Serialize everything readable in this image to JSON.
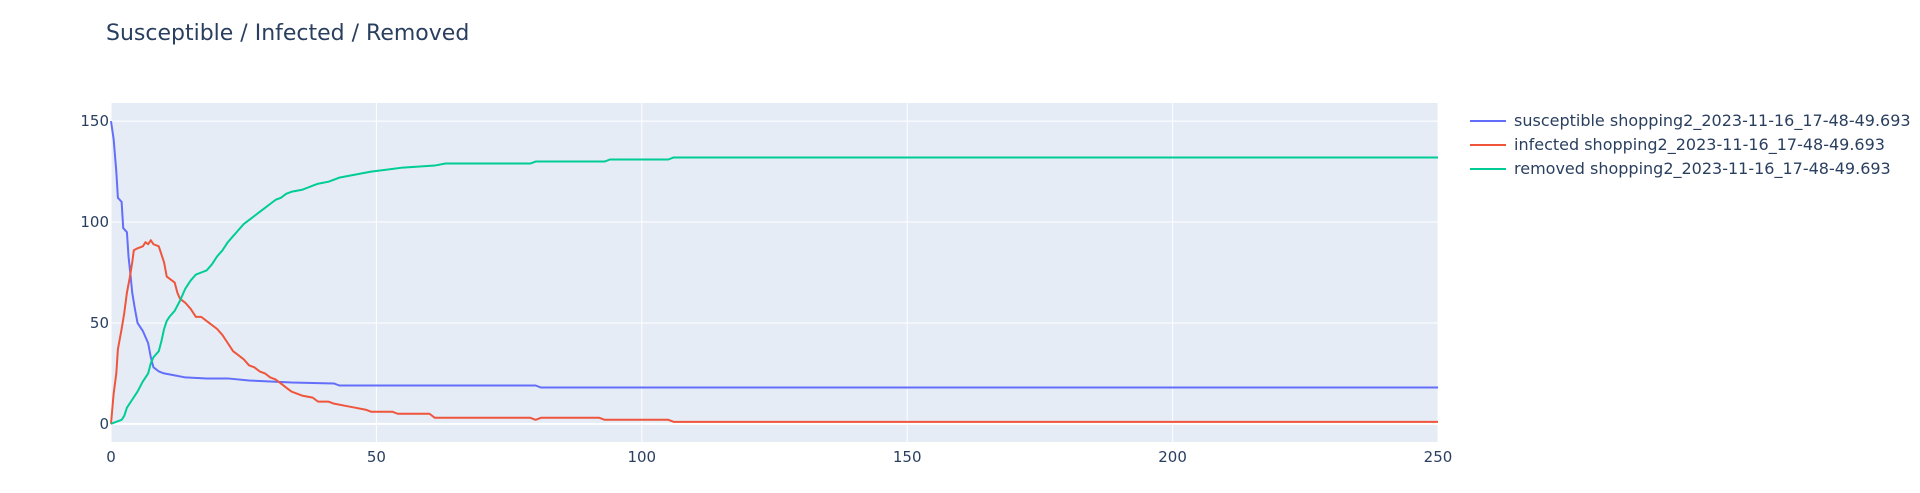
{
  "chart_data": {
    "type": "line",
    "title": "Susceptible / Infected / Removed",
    "xlabel": "",
    "ylabel": "",
    "xlim": [
      0,
      250
    ],
    "ylim": [
      -9,
      159
    ],
    "x_ticks": [
      0,
      50,
      100,
      150,
      200,
      250
    ],
    "y_ticks": [
      0,
      50,
      100,
      150
    ],
    "x_tick_labels": [
      "0",
      "50",
      "100",
      "150",
      "200",
      "250"
    ],
    "y_tick_labels": [
      "0",
      "50",
      "100",
      "150"
    ],
    "grid": true,
    "legend_position": "right",
    "plot_background": "#e5ecf6",
    "grid_color": "#ffffff",
    "series": [
      {
        "name": "susceptible shopping2_2023-11-16_17-48-49.693",
        "color": "#636efa",
        "points": [
          [
            0,
            150
          ],
          [
            0.5,
            141
          ],
          [
            1,
            125
          ],
          [
            1.3,
            112
          ],
          [
            2,
            110
          ],
          [
            2.3,
            97
          ],
          [
            3,
            95
          ],
          [
            3.3,
            83
          ],
          [
            3.7,
            73
          ],
          [
            4,
            65
          ],
          [
            4.5,
            57
          ],
          [
            5,
            50
          ],
          [
            6,
            46
          ],
          [
            7,
            40
          ],
          [
            7.5,
            33
          ],
          [
            8,
            28
          ],
          [
            9,
            26
          ],
          [
            10,
            25
          ],
          [
            12,
            24
          ],
          [
            14,
            23
          ],
          [
            18,
            22.5
          ],
          [
            22,
            22.5
          ],
          [
            26,
            21.5
          ],
          [
            30,
            21
          ],
          [
            34,
            20.5
          ],
          [
            42,
            20
          ],
          [
            43,
            19
          ],
          [
            60,
            19
          ],
          [
            80,
            19
          ],
          [
            81,
            18
          ],
          [
            150,
            18
          ],
          [
            250,
            18
          ]
        ]
      },
      {
        "name": "infected shopping2_2023-11-16_17-48-49.693",
        "color": "#ef553b",
        "points": [
          [
            0,
            0
          ],
          [
            0.5,
            15
          ],
          [
            1,
            25
          ],
          [
            1.3,
            37
          ],
          [
            2,
            47
          ],
          [
            2.5,
            55
          ],
          [
            3,
            65
          ],
          [
            3.5,
            72
          ],
          [
            4,
            80
          ],
          [
            4.3,
            86
          ],
          [
            5,
            87
          ],
          [
            6,
            88
          ],
          [
            6.5,
            90
          ],
          [
            7,
            89
          ],
          [
            7.5,
            91
          ],
          [
            8,
            89
          ],
          [
            9,
            88
          ],
          [
            10,
            80
          ],
          [
            10.5,
            73
          ],
          [
            11,
            72
          ],
          [
            12,
            70
          ],
          [
            12.5,
            65
          ],
          [
            13,
            62
          ],
          [
            14,
            60
          ],
          [
            15,
            57
          ],
          [
            16,
            53
          ],
          [
            17,
            53
          ],
          [
            18,
            51
          ],
          [
            20,
            47
          ],
          [
            21,
            44
          ],
          [
            22,
            40
          ],
          [
            23,
            36
          ],
          [
            24,
            34
          ],
          [
            25,
            32
          ],
          [
            26,
            29
          ],
          [
            27,
            28
          ],
          [
            28,
            26
          ],
          [
            29,
            25
          ],
          [
            30,
            23
          ],
          [
            31,
            22
          ],
          [
            32,
            20
          ],
          [
            33,
            18
          ],
          [
            34,
            16
          ],
          [
            35,
            15
          ],
          [
            36,
            14
          ],
          [
            38,
            13
          ],
          [
            39,
            11
          ],
          [
            41,
            11
          ],
          [
            42,
            10
          ],
          [
            44,
            9
          ],
          [
            46,
            8
          ],
          [
            48,
            7
          ],
          [
            49,
            6
          ],
          [
            53,
            6
          ],
          [
            54,
            5
          ],
          [
            60,
            5
          ],
          [
            61,
            3
          ],
          [
            70,
            3
          ],
          [
            79,
            3
          ],
          [
            80,
            2
          ],
          [
            81,
            3
          ],
          [
            92,
            3
          ],
          [
            93,
            2
          ],
          [
            105,
            2
          ],
          [
            106,
            1
          ],
          [
            250,
            1
          ]
        ]
      },
      {
        "name": "removed shopping2_2023-11-16_17-48-49.693",
        "color": "#00cc96",
        "points": [
          [
            0,
            0
          ],
          [
            1,
            1
          ],
          [
            2,
            2
          ],
          [
            2.5,
            4
          ],
          [
            3,
            8
          ],
          [
            4,
            12
          ],
          [
            5,
            16
          ],
          [
            6,
            21
          ],
          [
            7,
            25
          ],
          [
            7.5,
            30
          ],
          [
            8,
            33
          ],
          [
            9,
            36
          ],
          [
            9.5,
            41
          ],
          [
            10,
            47
          ],
          [
            10.5,
            51
          ],
          [
            11,
            53
          ],
          [
            12,
            56
          ],
          [
            13,
            61
          ],
          [
            14,
            67
          ],
          [
            15,
            71
          ],
          [
            16,
            74
          ],
          [
            17,
            75
          ],
          [
            18,
            76
          ],
          [
            19,
            79
          ],
          [
            20,
            83
          ],
          [
            21,
            86
          ],
          [
            22,
            90
          ],
          [
            23,
            93
          ],
          [
            24,
            96
          ],
          [
            25,
            99
          ],
          [
            26,
            101
          ],
          [
            27,
            103
          ],
          [
            28,
            105
          ],
          [
            29,
            107
          ],
          [
            30,
            109
          ],
          [
            31,
            111
          ],
          [
            32,
            112
          ],
          [
            33,
            114
          ],
          [
            34,
            115
          ],
          [
            36,
            116
          ],
          [
            37,
            117
          ],
          [
            38,
            118
          ],
          [
            39,
            119
          ],
          [
            41,
            120
          ],
          [
            42,
            121
          ],
          [
            43,
            122
          ],
          [
            45,
            123
          ],
          [
            47,
            124
          ],
          [
            49,
            125
          ],
          [
            52,
            126
          ],
          [
            55,
            127
          ],
          [
            61,
            128
          ],
          [
            63,
            129
          ],
          [
            79,
            129
          ],
          [
            80,
            130
          ],
          [
            93,
            130
          ],
          [
            94,
            131
          ],
          [
            105,
            131
          ],
          [
            106,
            132
          ],
          [
            250,
            132
          ]
        ]
      }
    ]
  }
}
